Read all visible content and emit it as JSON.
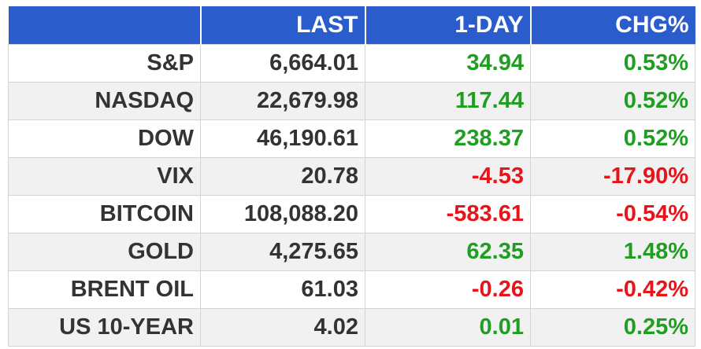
{
  "header": {
    "name": "",
    "last": "LAST",
    "day": "1-DAY",
    "chg": "CHG%"
  },
  "colors": {
    "header_bg": "#2b5ccc",
    "positive": "#1f9e22",
    "negative": "#e8141b",
    "text": "#333333",
    "stripe": "#f1f1f1"
  },
  "rows": [
    {
      "name": "S&P",
      "last": "6,664.01",
      "day": "34.94",
      "chg": "0.53%",
      "direction": "up"
    },
    {
      "name": "NASDAQ",
      "last": "22,679.98",
      "day": "117.44",
      "chg": "0.52%",
      "direction": "up"
    },
    {
      "name": "DOW",
      "last": "46,190.61",
      "day": "238.37",
      "chg": "0.52%",
      "direction": "up"
    },
    {
      "name": "VIX",
      "last": "20.78",
      "day": "-4.53",
      "chg": "-17.90%",
      "direction": "down"
    },
    {
      "name": "BITCOIN",
      "last": "108,088.20",
      "day": "-583.61",
      "chg": "-0.54%",
      "direction": "down"
    },
    {
      "name": "GOLD",
      "last": "4,275.65",
      "day": "62.35",
      "chg": "1.48%",
      "direction": "up"
    },
    {
      "name": "BRENT OIL",
      "last": "61.03",
      "day": "-0.26",
      "chg": "-0.42%",
      "direction": "down"
    },
    {
      "name": "US 10-YEAR",
      "last": "4.02",
      "day": "0.01",
      "chg": "0.25%",
      "direction": "up"
    }
  ]
}
